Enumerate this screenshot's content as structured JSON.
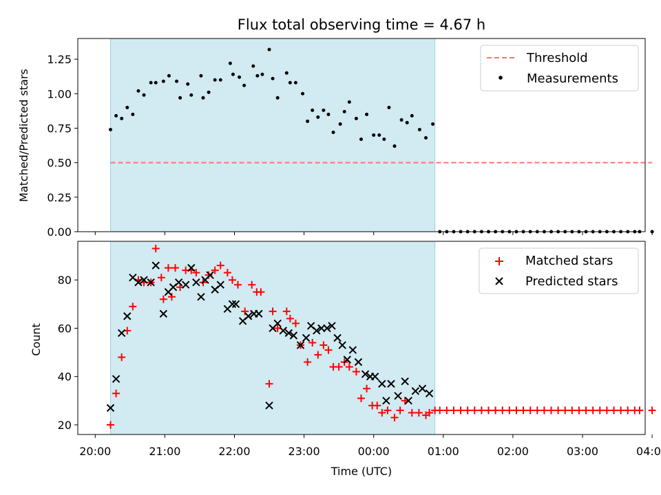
{
  "chart_data": [
    {
      "type": "scatter",
      "title": "Flux total observing time = 4.67 h",
      "xlabel": "",
      "ylabel": "Matched/Predicted stars",
      "xlim": [
        -0.25,
        7.9
      ],
      "ylim": [
        0,
        1.4
      ],
      "yticks": [
        0.0,
        0.25,
        0.5,
        0.75,
        1.0,
        1.25
      ],
      "ytick_labels": [
        "0.00",
        "0.25",
        "0.50",
        "0.75",
        "1.00",
        "1.25"
      ],
      "shaded_x_range": [
        0.22,
        4.88
      ],
      "threshold": {
        "name": "Threshold",
        "y": 0.5,
        "x": [
          0.22,
          8.0
        ],
        "color": "#ff7070"
      },
      "legend_position": "top-right",
      "series": [
        {
          "name": "Measurements",
          "color": "#000000",
          "points": [
            [
              0.22,
              0.74
            ],
            [
              0.3,
              0.84
            ],
            [
              0.38,
              0.82
            ],
            [
              0.46,
              0.9
            ],
            [
              0.54,
              0.85
            ],
            [
              0.62,
              1.02
            ],
            [
              0.7,
              0.99
            ],
            [
              0.8,
              1.08
            ],
            [
              0.87,
              1.08
            ],
            [
              0.98,
              1.09
            ],
            [
              1.06,
              1.13
            ],
            [
              1.17,
              1.09
            ],
            [
              1.22,
              0.97
            ],
            [
              1.33,
              1.07
            ],
            [
              1.38,
              0.99
            ],
            [
              1.52,
              1.13
            ],
            [
              1.55,
              0.97
            ],
            [
              1.63,
              1.01
            ],
            [
              1.72,
              1.1
            ],
            [
              1.8,
              1.1
            ],
            [
              1.94,
              1.22
            ],
            [
              1.98,
              1.14
            ],
            [
              2.07,
              1.12
            ],
            [
              2.14,
              1.06
            ],
            [
              2.27,
              1.2
            ],
            [
              2.33,
              1.13
            ],
            [
              2.4,
              1.14
            ],
            [
              2.5,
              1.32
            ],
            [
              2.55,
              1.11
            ],
            [
              2.62,
              0.97
            ],
            [
              2.75,
              1.15
            ],
            [
              2.8,
              1.08
            ],
            [
              2.88,
              1.08
            ],
            [
              2.98,
              1.0
            ],
            [
              3.05,
              0.8
            ],
            [
              3.12,
              0.88
            ],
            [
              3.2,
              0.83
            ],
            [
              3.28,
              0.88
            ],
            [
              3.35,
              0.85
            ],
            [
              3.42,
              0.72
            ],
            [
              3.52,
              0.78
            ],
            [
              3.58,
              0.87
            ],
            [
              3.65,
              0.94
            ],
            [
              3.75,
              0.82
            ],
            [
              3.82,
              0.67
            ],
            [
              3.9,
              0.85
            ],
            [
              4.0,
              0.7
            ],
            [
              4.08,
              0.7
            ],
            [
              4.15,
              0.67
            ],
            [
              4.22,
              0.9
            ],
            [
              4.3,
              0.62
            ],
            [
              4.4,
              0.81
            ],
            [
              4.48,
              0.79
            ],
            [
              4.55,
              0.84
            ],
            [
              4.66,
              0.74
            ],
            [
              4.75,
              0.68
            ],
            [
              4.85,
              0.78
            ],
            [
              4.95,
              0
            ],
            [
              5.05,
              0
            ],
            [
              5.15,
              0
            ],
            [
              5.25,
              0
            ],
            [
              5.35,
              0
            ],
            [
              5.45,
              0
            ],
            [
              5.55,
              0
            ],
            [
              5.65,
              0
            ],
            [
              5.75,
              0
            ],
            [
              5.85,
              0
            ],
            [
              5.95,
              0
            ],
            [
              6.05,
              0
            ],
            [
              6.15,
              0
            ],
            [
              6.25,
              0
            ],
            [
              6.35,
              0
            ],
            [
              6.45,
              0
            ],
            [
              6.55,
              0
            ],
            [
              6.65,
              0
            ],
            [
              6.75,
              0
            ],
            [
              6.85,
              0
            ],
            [
              6.95,
              0
            ],
            [
              7.05,
              0
            ],
            [
              7.15,
              0
            ],
            [
              7.25,
              0
            ],
            [
              7.35,
              0
            ],
            [
              7.45,
              0
            ],
            [
              7.55,
              0
            ],
            [
              7.65,
              0
            ],
            [
              7.75,
              0
            ],
            [
              7.82,
              0
            ],
            [
              8.0,
              0
            ]
          ]
        }
      ]
    },
    {
      "type": "scatter",
      "title": "",
      "xlabel": "Time (UTC)",
      "ylabel": "Count",
      "xlim": [
        -0.25,
        7.9
      ],
      "ylim": [
        16,
        96
      ],
      "yticks": [
        20,
        40,
        60,
        80
      ],
      "ytick_labels": [
        "20",
        "40",
        "60",
        "80"
      ],
      "xticks": [
        0,
        1,
        2,
        3,
        4,
        5,
        6,
        7,
        8
      ],
      "xtick_labels": [
        "20:00",
        "21:00",
        "22:00",
        "23:00",
        "00:00",
        "01:00",
        "02:00",
        "03:00",
        "04:00"
      ],
      "shaded_x_range": [
        0.22,
        4.88
      ],
      "legend_position": "top-right",
      "series": [
        {
          "name": "Matched stars",
          "color": "#ff0000",
          "marker": "plus",
          "points": [
            [
              0.22,
              20
            ],
            [
              0.3,
              33
            ],
            [
              0.38,
              48
            ],
            [
              0.46,
              59
            ],
            [
              0.54,
              69
            ],
            [
              0.62,
              80
            ],
            [
              0.7,
              79
            ],
            [
              0.8,
              79
            ],
            [
              0.87,
              93
            ],
            [
              0.95,
              81
            ],
            [
              0.98,
              72
            ],
            [
              1.05,
              85
            ],
            [
              1.1,
              73
            ],
            [
              1.15,
              85
            ],
            [
              1.22,
              77
            ],
            [
              1.3,
              84
            ],
            [
              1.38,
              84
            ],
            [
              1.45,
              83
            ],
            [
              1.55,
              79
            ],
            [
              1.63,
              82
            ],
            [
              1.72,
              84
            ],
            [
              1.8,
              86
            ],
            [
              1.9,
              83
            ],
            [
              1.97,
              80
            ],
            [
              2.05,
              78
            ],
            [
              2.15,
              67
            ],
            [
              2.25,
              78
            ],
            [
              2.32,
              75
            ],
            [
              2.38,
              75
            ],
            [
              2.5,
              37
            ],
            [
              2.55,
              67
            ],
            [
              2.62,
              60
            ],
            [
              2.75,
              67
            ],
            [
              2.8,
              64
            ],
            [
              2.88,
              62
            ],
            [
              2.95,
              53
            ],
            [
              3.05,
              46
            ],
            [
              3.12,
              54
            ],
            [
              3.2,
              49
            ],
            [
              3.28,
              53
            ],
            [
              3.35,
              51
            ],
            [
              3.42,
              44
            ],
            [
              3.5,
              44
            ],
            [
              3.58,
              46
            ],
            [
              3.65,
              44
            ],
            [
              3.75,
              42
            ],
            [
              3.82,
              31
            ],
            [
              3.9,
              35
            ],
            [
              3.98,
              28
            ],
            [
              4.05,
              28
            ],
            [
              4.12,
              25
            ],
            [
              4.2,
              26
            ],
            [
              4.3,
              23
            ],
            [
              4.38,
              26
            ],
            [
              4.45,
              30
            ],
            [
              4.55,
              25
            ],
            [
              4.65,
              25
            ],
            [
              4.75,
              24
            ],
            [
              4.8,
              25
            ],
            [
              4.88,
              26
            ],
            [
              4.95,
              26
            ],
            [
              5.05,
              26
            ],
            [
              5.15,
              26
            ],
            [
              5.25,
              26
            ],
            [
              5.35,
              26
            ],
            [
              5.45,
              26
            ],
            [
              5.55,
              26
            ],
            [
              5.65,
              26
            ],
            [
              5.75,
              26
            ],
            [
              5.85,
              26
            ],
            [
              5.95,
              26
            ],
            [
              6.05,
              26
            ],
            [
              6.15,
              26
            ],
            [
              6.25,
              26
            ],
            [
              6.35,
              26
            ],
            [
              6.45,
              26
            ],
            [
              6.55,
              26
            ],
            [
              6.65,
              26
            ],
            [
              6.75,
              26
            ],
            [
              6.85,
              26
            ],
            [
              6.95,
              26
            ],
            [
              7.05,
              26
            ],
            [
              7.15,
              26
            ],
            [
              7.25,
              26
            ],
            [
              7.35,
              26
            ],
            [
              7.45,
              26
            ],
            [
              7.55,
              26
            ],
            [
              7.65,
              26
            ],
            [
              7.75,
              26
            ],
            [
              7.82,
              26
            ],
            [
              8.0,
              26
            ]
          ]
        },
        {
          "name": "Predicted stars",
          "color": "#000000",
          "marker": "x",
          "points": [
            [
              0.22,
              27
            ],
            [
              0.3,
              39
            ],
            [
              0.38,
              58
            ],
            [
              0.46,
              65
            ],
            [
              0.54,
              81
            ],
            [
              0.62,
              79
            ],
            [
              0.7,
              80
            ],
            [
              0.8,
              79
            ],
            [
              0.87,
              86
            ],
            [
              0.98,
              66
            ],
            [
              1.05,
              75
            ],
            [
              1.12,
              77
            ],
            [
              1.2,
              79
            ],
            [
              1.3,
              78
            ],
            [
              1.38,
              85
            ],
            [
              1.45,
              79
            ],
            [
              1.52,
              73
            ],
            [
              1.58,
              80
            ],
            [
              1.65,
              82
            ],
            [
              1.72,
              76
            ],
            [
              1.8,
              78
            ],
            [
              1.9,
              68
            ],
            [
              1.97,
              70
            ],
            [
              2.02,
              70
            ],
            [
              2.12,
              63
            ],
            [
              2.2,
              65
            ],
            [
              2.28,
              66
            ],
            [
              2.35,
              66
            ],
            [
              2.5,
              28
            ],
            [
              2.55,
              60
            ],
            [
              2.62,
              62
            ],
            [
              2.7,
              59
            ],
            [
              2.78,
              58
            ],
            [
              2.85,
              57
            ],
            [
              2.95,
              53
            ],
            [
              3.03,
              56
            ],
            [
              3.1,
              61
            ],
            [
              3.18,
              59
            ],
            [
              3.25,
              60
            ],
            [
              3.33,
              60
            ],
            [
              3.4,
              61
            ],
            [
              3.48,
              56
            ],
            [
              3.55,
              53
            ],
            [
              3.62,
              47
            ],
            [
              3.7,
              51
            ],
            [
              3.78,
              46
            ],
            [
              3.88,
              41
            ],
            [
              3.95,
              40
            ],
            [
              4.02,
              40
            ],
            [
              4.12,
              37
            ],
            [
              4.18,
              30
            ],
            [
              4.25,
              37
            ],
            [
              4.35,
              32
            ],
            [
              4.45,
              38
            ],
            [
              4.5,
              30
            ],
            [
              4.6,
              34
            ],
            [
              4.7,
              35
            ],
            [
              4.8,
              33
            ]
          ]
        }
      ]
    }
  ]
}
